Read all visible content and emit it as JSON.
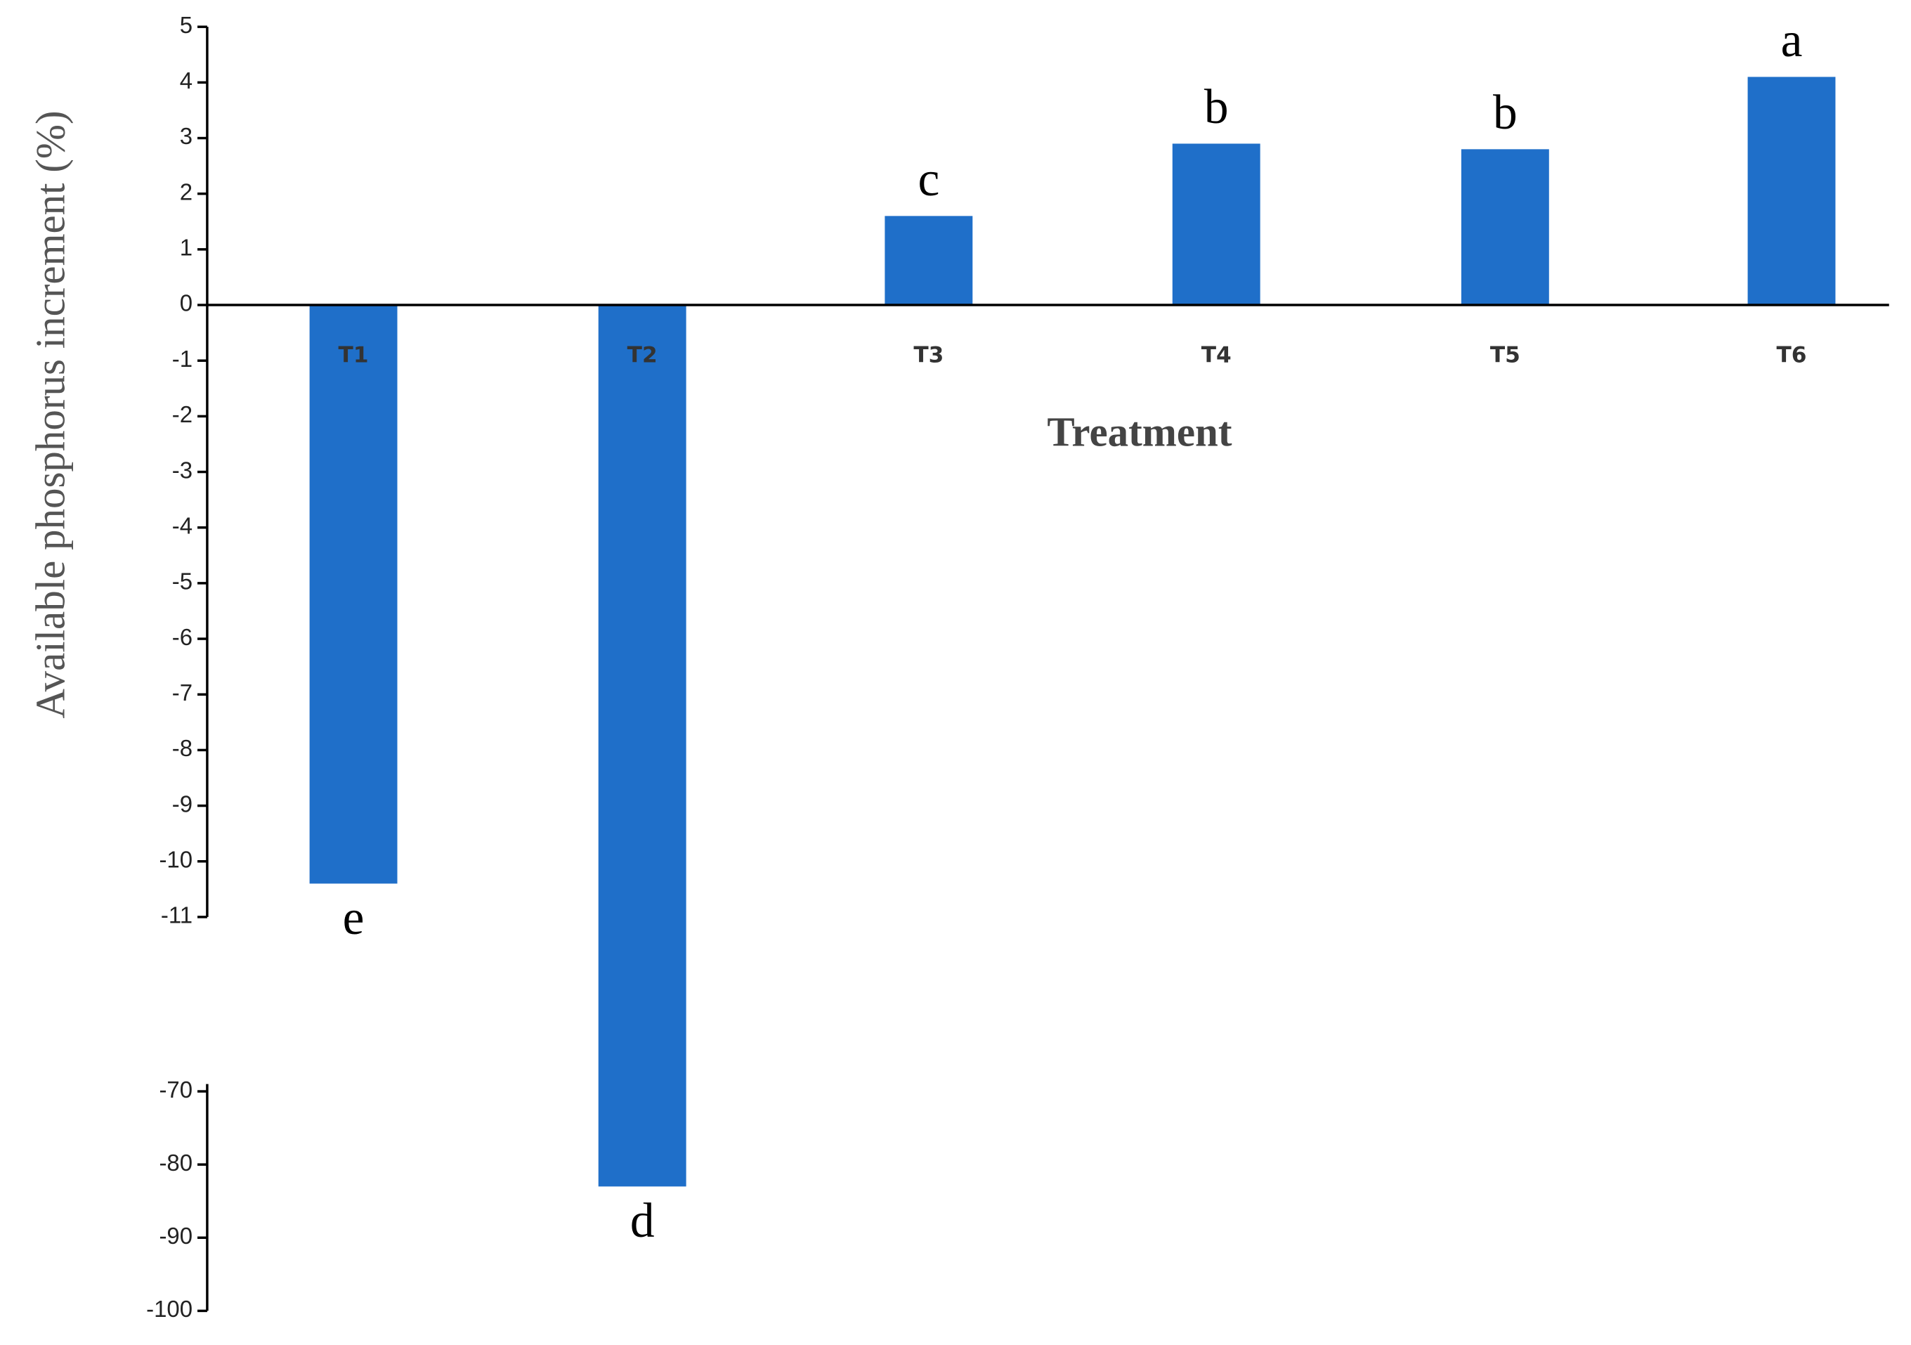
{
  "chart_data": {
    "type": "bar",
    "y_label": "Available phosphorus increment (%)",
    "x_label": "Treatment",
    "categories": [
      "T1",
      "T2",
      "T3",
      "T4",
      "T5",
      "T6"
    ],
    "values": [
      -10.4,
      -83,
      1.6,
      2.9,
      2.8,
      4.1
    ],
    "letters": [
      "e",
      "d",
      "c",
      "b",
      "b",
      "a"
    ],
    "color": "#1f6fc9",
    "axis_segments": [
      {
        "ylim": [
          -11,
          5
        ],
        "yticks": [
          -11,
          -10,
          -9,
          -8,
          -7,
          -6,
          -5,
          -4,
          -3,
          -2,
          -1,
          0,
          1,
          2,
          3,
          4,
          5
        ]
      },
      {
        "ylim": [
          -100,
          -70
        ],
        "yticks": [
          -70,
          -80,
          -90,
          -100
        ]
      }
    ]
  }
}
